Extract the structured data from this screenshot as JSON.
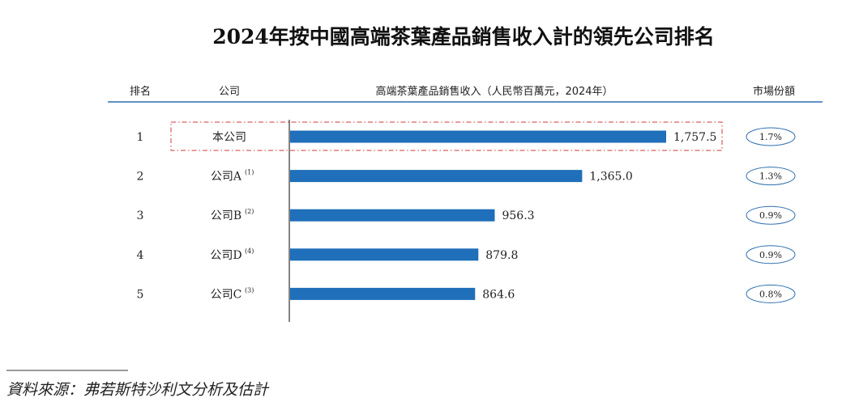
{
  "colors": {
    "bar": "#1f6fba",
    "header_rule": "#2e6fb0",
    "highlight_border": "#d23a3a",
    "share_oval": "#2e6fb0",
    "axis": "#333333"
  },
  "chart_data": {
    "type": "bar",
    "orientation": "horizontal",
    "title": "2024年按中國高端茶葉產品銷售收入計的領先公司排名",
    "columns": {
      "rank": "排名",
      "company": "公司",
      "value": "高端茶葉產品銷售收入（人民幣百萬元，2024年）",
      "share": "市場份額"
    },
    "rows": [
      {
        "rank": "1",
        "company": "本公司",
        "note": "",
        "value": 1757.5,
        "value_label": "1,757.5",
        "share": "1.7%",
        "highlight": true
      },
      {
        "rank": "2",
        "company": "公司A",
        "note": "(1)",
        "value": 1365.0,
        "value_label": "1,365.0",
        "share": "1.3%",
        "highlight": false
      },
      {
        "rank": "3",
        "company": "公司B",
        "note": "(2)",
        "value": 956.3,
        "value_label": "956.3",
        "share": "0.9%",
        "highlight": false
      },
      {
        "rank": "4",
        "company": "公司D",
        "note": "(4)",
        "value": 879.8,
        "value_label": "879.8",
        "share": "0.9%",
        "highlight": false
      },
      {
        "rank": "5",
        "company": "公司C",
        "note": "(3)",
        "value": 864.6,
        "value_label": "864.6",
        "share": "0.8%",
        "highlight": false
      }
    ],
    "xlim": [
      0,
      1757.5
    ],
    "grid": false,
    "legend": "none"
  },
  "source": {
    "text": "資料來源：弗若斯特沙利文分析及估計"
  }
}
